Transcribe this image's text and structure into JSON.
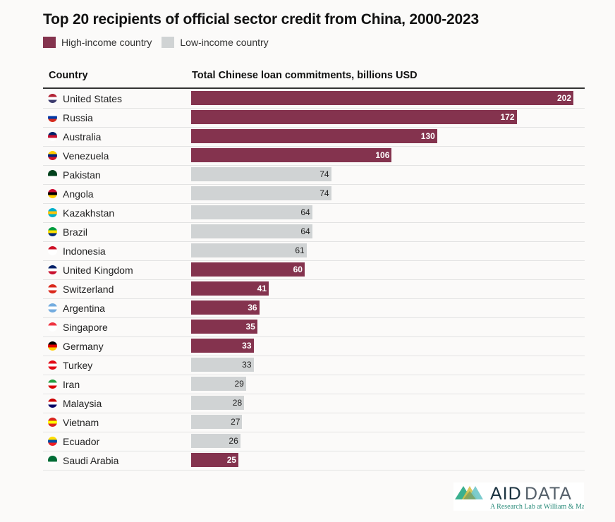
{
  "chart_data": {
    "type": "bar",
    "orientation": "horizontal",
    "title": "Top 20 recipients of official sector credit from China, 2000-2023",
    "column_headers": {
      "country": "Country",
      "value": "Total Chinese loan commitments, billions USD"
    },
    "legend": [
      {
        "label": "High-income country",
        "color": "#84334e"
      },
      {
        "label": "Low-income country",
        "color": "#d0d3d4"
      }
    ],
    "legend_placement": "top-left",
    "xlim": [
      0,
      202
    ],
    "rows": [
      {
        "country": "United States",
        "value": 202,
        "group": "high",
        "flag": [
          "#b22234",
          "#ffffff",
          "#3c3b6e"
        ]
      },
      {
        "country": "Russia",
        "value": 172,
        "group": "high",
        "flag": [
          "#ffffff",
          "#0039a6",
          "#d52b1e"
        ]
      },
      {
        "country": "Australia",
        "value": 130,
        "group": "high",
        "flag": [
          "#012169",
          "#c8102e",
          "#ffffff"
        ]
      },
      {
        "country": "Venezuela",
        "value": 106,
        "group": "high",
        "flag": [
          "#ffcc00",
          "#00247d",
          "#cf142b"
        ]
      },
      {
        "country": "Pakistan",
        "value": 74,
        "group": "low",
        "flag": [
          "#01411c",
          "#01411c",
          "#ffffff"
        ]
      },
      {
        "country": "Angola",
        "value": 74,
        "group": "low",
        "flag": [
          "#cc092f",
          "#000000",
          "#ffcb00"
        ]
      },
      {
        "country": "Kazakhstan",
        "value": 64,
        "group": "low",
        "flag": [
          "#00afca",
          "#fec50c",
          "#00afca"
        ]
      },
      {
        "country": "Brazil",
        "value": 64,
        "group": "low",
        "flag": [
          "#009c3b",
          "#ffdf00",
          "#002776"
        ]
      },
      {
        "country": "Indonesia",
        "value": 61,
        "group": "low",
        "flag": [
          "#ce1126",
          "#ffffff",
          "#ffffff"
        ]
      },
      {
        "country": "United Kingdom",
        "value": 60,
        "group": "high",
        "flag": [
          "#012169",
          "#ffffff",
          "#c8102e"
        ]
      },
      {
        "country": "Switzerland",
        "value": 41,
        "group": "high",
        "flag": [
          "#da291c",
          "#ffffff",
          "#da291c"
        ]
      },
      {
        "country": "Argentina",
        "value": 36,
        "group": "high",
        "flag": [
          "#74acdf",
          "#ffffff",
          "#74acdf"
        ]
      },
      {
        "country": "Singapore",
        "value": 35,
        "group": "high",
        "flag": [
          "#ef3340",
          "#ffffff",
          "#ffffff"
        ]
      },
      {
        "country": "Germany",
        "value": 33,
        "group": "high",
        "flag": [
          "#000000",
          "#dd0000",
          "#ffce00"
        ]
      },
      {
        "country": "Turkey",
        "value": 33,
        "group": "low",
        "flag": [
          "#e30a17",
          "#ffffff",
          "#e30a17"
        ]
      },
      {
        "country": "Iran",
        "value": 29,
        "group": "low",
        "flag": [
          "#239f40",
          "#ffffff",
          "#da0000"
        ]
      },
      {
        "country": "Malaysia",
        "value": 28,
        "group": "low",
        "flag": [
          "#cc0001",
          "#ffffff",
          "#010066"
        ]
      },
      {
        "country": "Vietnam",
        "value": 27,
        "group": "low",
        "flag": [
          "#da251d",
          "#ffff00",
          "#da251d"
        ]
      },
      {
        "country": "Ecuador",
        "value": 26,
        "group": "low",
        "flag": [
          "#ffdd00",
          "#034ea2",
          "#ed1c24"
        ]
      },
      {
        "country": "Saudi Arabia",
        "value": 25,
        "group": "high",
        "flag": [
          "#006c35",
          "#006c35",
          "#ffffff"
        ]
      }
    ]
  },
  "logo": {
    "name": "AIDDATA",
    "tagline": "A Research Lab at William & Mary"
  }
}
